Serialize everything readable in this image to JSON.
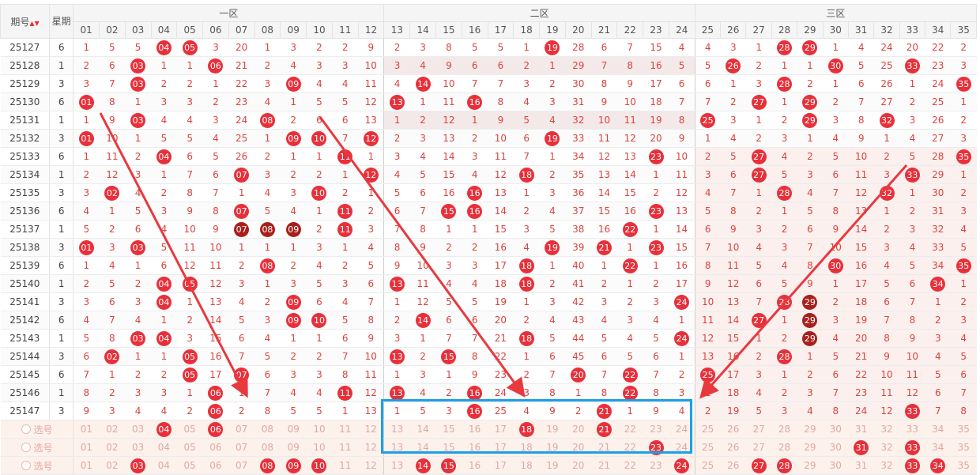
{
  "header": {
    "issue_label": "期号",
    "week_label": "星期",
    "zones": [
      "一区",
      "二区",
      "三区"
    ],
    "columns": [
      "01",
      "02",
      "03",
      "04",
      "05",
      "06",
      "07",
      "08",
      "09",
      "10",
      "11",
      "12",
      "13",
      "14",
      "15",
      "16",
      "17",
      "18",
      "19",
      "20",
      "21",
      "22",
      "23",
      "24",
      "25",
      "26",
      "27",
      "28",
      "29",
      "30",
      "31",
      "32",
      "33",
      "34",
      "35"
    ]
  },
  "rows": [
    {
      "issue": "25127",
      "week": "6",
      "cells": [
        "1",
        "5",
        "5",
        "b:04",
        "b:05",
        "3",
        "20",
        "1",
        "3",
        "2",
        "2",
        "9",
        "2",
        "3",
        "8",
        "5",
        "5",
        "1",
        "b:19",
        "28",
        "6",
        "7",
        "15",
        "4",
        "4",
        "3",
        "1",
        "b:28",
        "b:29",
        "1",
        "4",
        "24",
        "20",
        "22",
        "2"
      ]
    },
    {
      "issue": "25128",
      "week": "1",
      "cells": [
        "2",
        "6",
        "b:03",
        "1",
        "1",
        "b:06",
        "21",
        "2",
        "4",
        "3",
        "3",
        "10",
        "3",
        "4",
        "9",
        "6",
        "6",
        "2",
        "1",
        "29",
        "7",
        "8",
        "16",
        "5",
        "5",
        "b:26",
        "2",
        "1",
        "1",
        "b:30",
        "5",
        "25",
        "b:33",
        "23",
        "3"
      ]
    },
    {
      "issue": "25129",
      "week": "3",
      "cells": [
        "3",
        "7",
        "b:03",
        "2",
        "2",
        "1",
        "22",
        "3",
        "b:09",
        "4",
        "4",
        "11",
        "4",
        "b:14",
        "10",
        "7",
        "7",
        "3",
        "2",
        "30",
        "8",
        "9",
        "17",
        "6",
        "6",
        "1",
        "3",
        "b:28",
        "2",
        "1",
        "6",
        "26",
        "1",
        "24",
        "b:35"
      ]
    },
    {
      "issue": "25130",
      "week": "6",
      "cells": [
        "b:01",
        "8",
        "1",
        "3",
        "3",
        "2",
        "23",
        "4",
        "1",
        "5",
        "5",
        "12",
        "b:13",
        "1",
        "11",
        "b:16",
        "8",
        "4",
        "3",
        "31",
        "9",
        "10",
        "18",
        "7",
        "7",
        "2",
        "b:27",
        "1",
        "b:29",
        "2",
        "7",
        "27",
        "2",
        "25",
        "1"
      ]
    },
    {
      "issue": "25131",
      "week": "1",
      "cells": [
        "1",
        "9",
        "b:03",
        "4",
        "4",
        "3",
        "24",
        "b:08",
        "2",
        "6",
        "6",
        "13",
        "1",
        "2",
        "12",
        "1",
        "9",
        "5",
        "4",
        "32",
        "10",
        "11",
        "19",
        "8",
        "b:25",
        "3",
        "1",
        "2",
        "b:29",
        "3",
        "8",
        "b:32",
        "3",
        "26",
        "2"
      ]
    },
    {
      "issue": "25132",
      "week": "3",
      "cells": [
        "b:01",
        "10",
        "1",
        "5",
        "5",
        "4",
        "25",
        "1",
        "b:09",
        "b:10",
        "7",
        "b:12",
        "2",
        "3",
        "13",
        "2",
        "10",
        "6",
        "b:19",
        "33",
        "11",
        "12",
        "20",
        "9",
        "1",
        "4",
        "2",
        "3",
        "1",
        "4",
        "9",
        "1",
        "4",
        "27",
        "3"
      ]
    },
    {
      "issue": "25133",
      "week": "6",
      "cells": [
        "1",
        "11",
        "2",
        "b:04",
        "6",
        "5",
        "26",
        "2",
        "1",
        "1",
        "b:11",
        "1",
        "3",
        "4",
        "14",
        "3",
        "11",
        "7",
        "1",
        "34",
        "12",
        "13",
        "b:23",
        "10",
        "2",
        "5",
        "b:27",
        "4",
        "2",
        "5",
        "10",
        "2",
        "5",
        "28",
        "b:35"
      ]
    },
    {
      "issue": "25134",
      "week": "1",
      "cells": [
        "2",
        "12",
        "3",
        "1",
        "7",
        "6",
        "b:07",
        "3",
        "2",
        "2",
        "1",
        "b:12",
        "4",
        "5",
        "15",
        "4",
        "12",
        "b:18",
        "2",
        "35",
        "13",
        "14",
        "1",
        "11",
        "3",
        "6",
        "b:27",
        "5",
        "3",
        "6",
        "11",
        "3",
        "b:33",
        "29",
        "1"
      ]
    },
    {
      "issue": "25135",
      "week": "3",
      "cells": [
        "3",
        "b:02",
        "4",
        "2",
        "8",
        "7",
        "1",
        "4",
        "3",
        "b:10",
        "2",
        "1",
        "5",
        "6",
        "16",
        "b:16",
        "13",
        "1",
        "3",
        "36",
        "14",
        "15",
        "2",
        "12",
        "4",
        "7",
        "1",
        "b:28",
        "4",
        "7",
        "12",
        "b:32",
        "1",
        "30",
        "2"
      ]
    },
    {
      "issue": "25136",
      "week": "6",
      "cells": [
        "4",
        "1",
        "5",
        "3",
        "9",
        "8",
        "b:07",
        "5",
        "4",
        "1",
        "b:11",
        "2",
        "6",
        "7",
        "b:15",
        "b:16",
        "14",
        "2",
        "4",
        "37",
        "15",
        "16",
        "b:23",
        "13",
        "5",
        "8",
        "2",
        "1",
        "5",
        "8",
        "13",
        "1",
        "2",
        "31",
        "3"
      ]
    },
    {
      "issue": "25137",
      "week": "1",
      "cells": [
        "5",
        "2",
        "6",
        "4",
        "10",
        "9",
        "d:07",
        "d:08",
        "d:09",
        "2",
        "b:11",
        "3",
        "7",
        "8",
        "1",
        "1",
        "15",
        "3",
        "5",
        "38",
        "16",
        "b:22",
        "1",
        "14",
        "6",
        "9",
        "3",
        "2",
        "6",
        "9",
        "14",
        "2",
        "3",
        "32",
        "4"
      ]
    },
    {
      "issue": "25138",
      "week": "3",
      "cells": [
        "b:01",
        "3",
        "b:03",
        "5",
        "11",
        "10",
        "1",
        "1",
        "1",
        "3",
        "1",
        "4",
        "8",
        "9",
        "2",
        "2",
        "16",
        "4",
        "b:19",
        "39",
        "b:21",
        "1",
        "b:23",
        "15",
        "7",
        "10",
        "4",
        "3",
        "7",
        "10",
        "15",
        "3",
        "4",
        "33",
        "5"
      ]
    },
    {
      "issue": "25139",
      "week": "6",
      "cells": [
        "1",
        "4",
        "1",
        "6",
        "12",
        "11",
        "2",
        "b:08",
        "2",
        "4",
        "2",
        "5",
        "9",
        "10",
        "3",
        "3",
        "17",
        "b:18",
        "1",
        "40",
        "1",
        "b:22",
        "1",
        "16",
        "8",
        "11",
        "5",
        "4",
        "8",
        "b:30",
        "16",
        "4",
        "5",
        "34",
        "b:35"
      ]
    },
    {
      "issue": "25140",
      "week": "1",
      "cells": [
        "2",
        "5",
        "2",
        "b:04",
        "b:05",
        "12",
        "3",
        "1",
        "3",
        "5",
        "3",
        "6",
        "b:13",
        "11",
        "4",
        "4",
        "18",
        "b:18",
        "2",
        "41",
        "2",
        "1",
        "2",
        "17",
        "9",
        "12",
        "6",
        "5",
        "9",
        "1",
        "17",
        "5",
        "6",
        "b:34",
        "1"
      ]
    },
    {
      "issue": "25141",
      "week": "3",
      "cells": [
        "3",
        "6",
        "3",
        "b:04",
        "1",
        "13",
        "4",
        "2",
        "b:09",
        "6",
        "4",
        "7",
        "1",
        "12",
        "5",
        "5",
        "19",
        "1",
        "3",
        "42",
        "3",
        "2",
        "3",
        "b:24",
        "10",
        "13",
        "7",
        "b:28",
        "d:29",
        "2",
        "18",
        "6",
        "7",
        "1",
        "2"
      ]
    },
    {
      "issue": "25142",
      "week": "6",
      "cells": [
        "4",
        "7",
        "4",
        "1",
        "2",
        "14",
        "5",
        "3",
        "b:09",
        "b:10",
        "5",
        "8",
        "2",
        "b:14",
        "6",
        "6",
        "20",
        "2",
        "4",
        "43",
        "4",
        "3",
        "4",
        "1",
        "11",
        "14",
        "b:27",
        "1",
        "d:29",
        "3",
        "19",
        "7",
        "8",
        "2",
        "3"
      ]
    },
    {
      "issue": "25143",
      "week": "1",
      "cells": [
        "5",
        "8",
        "b:03",
        "b:04",
        "3",
        "15",
        "6",
        "4",
        "1",
        "1",
        "6",
        "9",
        "3",
        "1",
        "7",
        "7",
        "21",
        "b:18",
        "5",
        "44",
        "5",
        "4",
        "5",
        "b:24",
        "12",
        "15",
        "1",
        "2",
        "d:29",
        "4",
        "20",
        "8",
        "9",
        "3",
        "4"
      ]
    },
    {
      "issue": "25144",
      "week": "3",
      "cells": [
        "6",
        "b:02",
        "1",
        "1",
        "b:05",
        "16",
        "7",
        "5",
        "2",
        "2",
        "7",
        "10",
        "b:13",
        "2",
        "b:15",
        "8",
        "22",
        "1",
        "6",
        "45",
        "6",
        "5",
        "6",
        "1",
        "13",
        "16",
        "2",
        "b:28",
        "1",
        "5",
        "21",
        "9",
        "10",
        "4",
        "5"
      ]
    },
    {
      "issue": "25145",
      "week": "6",
      "cells": [
        "7",
        "1",
        "2",
        "2",
        "b:05",
        "17",
        "b:07",
        "6",
        "3",
        "3",
        "8",
        "11",
        "1",
        "3",
        "1",
        "9",
        "23",
        "2",
        "7",
        "b:20",
        "7",
        "b:22",
        "7",
        "2",
        "b:25",
        "17",
        "3",
        "1",
        "2",
        "6",
        "22",
        "10",
        "11",
        "5",
        "6"
      ]
    },
    {
      "issue": "25146",
      "week": "1",
      "cells": [
        "8",
        "2",
        "3",
        "3",
        "1",
        "b:06",
        "1",
        "7",
        "4",
        "4",
        "b:11",
        "12",
        "b:13",
        "4",
        "2",
        "b:16",
        "24",
        "3",
        "8",
        "1",
        "8",
        "b:22",
        "8",
        "3",
        "1",
        "18",
        "4",
        "2",
        "3",
        "7",
        "23",
        "11",
        "12",
        "6",
        "7"
      ]
    },
    {
      "issue": "25147",
      "week": "3",
      "cells": [
        "9",
        "3",
        "4",
        "4",
        "2",
        "b:06",
        "2",
        "8",
        "5",
        "5",
        "1",
        "13",
        "1",
        "5",
        "3",
        "b:16",
        "25",
        "4",
        "9",
        "2",
        "b:21",
        "1",
        "9",
        "4",
        "2",
        "19",
        "5",
        "3",
        "4",
        "8",
        "24",
        "12",
        "b:33",
        "7",
        "8"
      ]
    }
  ],
  "pick_rows": [
    {
      "label": "选号",
      "balls": [
        "04",
        "06",
        "18",
        "21"
      ]
    },
    {
      "label": "选号",
      "balls": [
        "23",
        "31",
        "33"
      ]
    },
    {
      "label": "选号",
      "balls": [
        "03",
        "08",
        "09",
        "10",
        "14",
        "15",
        "24",
        "27",
        "28",
        "33",
        "34"
      ]
    }
  ],
  "sort_indicator": "▲▼",
  "colors": {
    "ball": "#e8303a",
    "ball_dark": "#a8201c",
    "arrow": "#e8393f",
    "selection_box": "#1ba0e8"
  }
}
